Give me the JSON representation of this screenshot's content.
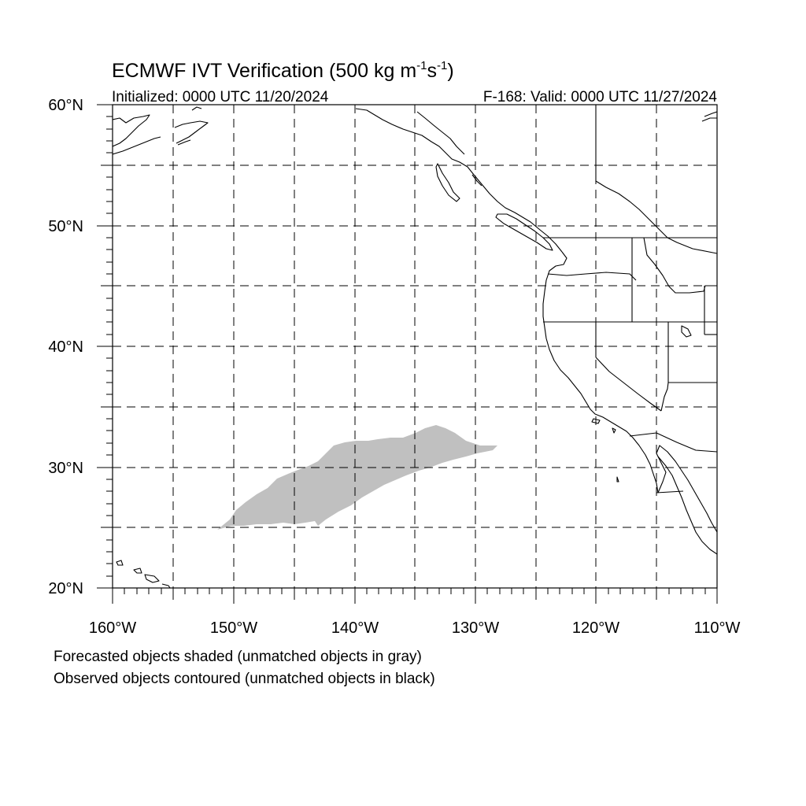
{
  "title": {
    "main": "ECMWF IVT Verification (500 kg m",
    "sup1": "-1",
    "mid": "s",
    "sup2": "-1",
    "close": ")"
  },
  "subtitle_left": "Initialized: 0000 UTC 11/20/2024",
  "subtitle_right": "F-168: Valid: 0000 UTC 11/27/2024",
  "map": {
    "lon_range": [
      -160,
      -110
    ],
    "lat_range": [
      20,
      60
    ],
    "lat_labels": [
      "20°N",
      "30°N",
      "40°N",
      "50°N",
      "60°N"
    ],
    "lon_labels": [
      "160°W",
      "150°W",
      "140°W",
      "130°W",
      "120°W",
      "110°W"
    ],
    "gridlines": "dashed, every 5°",
    "colors": {
      "coastline": "#000000",
      "forecast_unmatched": "#c0c0c0",
      "grid": "#000000"
    }
  },
  "objects": [
    {
      "kind": "forecast",
      "matched": false,
      "shading": "gray"
    }
  ],
  "notes": [
    "Forecasted objects shaded (unmatched objects in gray)",
    "Observed objects contoured (unmatched objects in black)"
  ]
}
